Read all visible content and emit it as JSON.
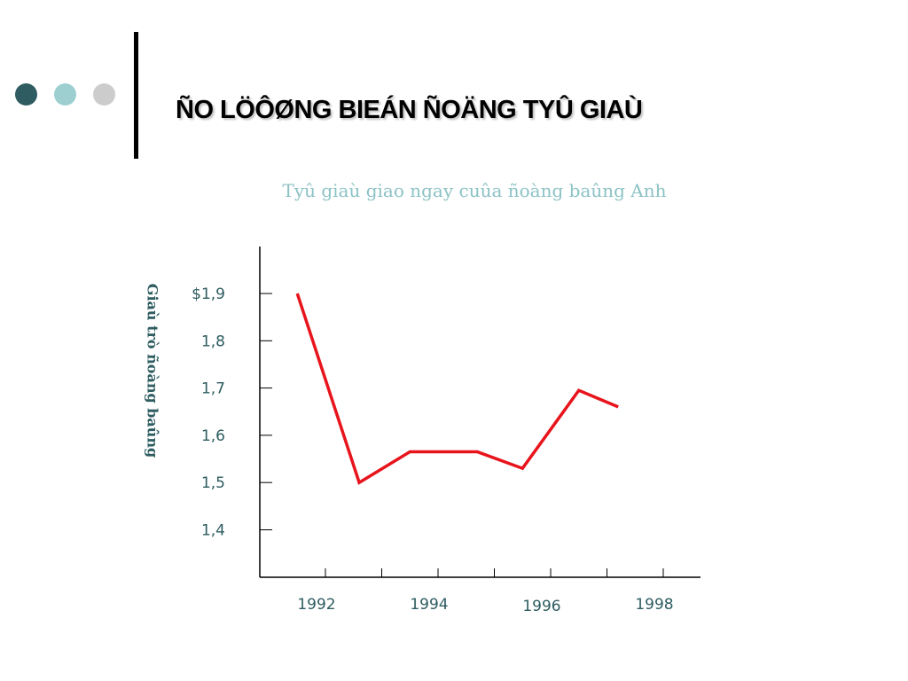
{
  "slide": {
    "title": "ÑO LÖÔØNG BIEÁN ÑOÄNG TYÛ GIAÙ",
    "dot_colors": [
      "#2e5c60",
      "#9dcfd1",
      "#cccccc"
    ]
  },
  "chart_data": {
    "type": "line",
    "title": "Tyû giaù giao ngay cuûa ñoàng baûng Anh",
    "xlabel": "",
    "ylabel": "Giaù trò ñoàng baûng",
    "x_tick_labels": [
      "1992",
      "1994",
      "1996",
      "1998"
    ],
    "y_tick_labels": [
      "$1,9",
      "1,8",
      "1,7",
      "1,6",
      "1,5",
      "1,4"
    ],
    "ylim": [
      1.3,
      1.9
    ],
    "series": [
      {
        "color": "#e8141c",
        "x": [
          1991.5,
          1992.6,
          1993.5,
          1994.7,
          1995.5,
          1996.5,
          1997.2
        ],
        "y": [
          1.9,
          1.5,
          1.565,
          1.565,
          1.53,
          1.695,
          1.66
        ]
      }
    ],
    "grid": false,
    "legend": "none"
  }
}
